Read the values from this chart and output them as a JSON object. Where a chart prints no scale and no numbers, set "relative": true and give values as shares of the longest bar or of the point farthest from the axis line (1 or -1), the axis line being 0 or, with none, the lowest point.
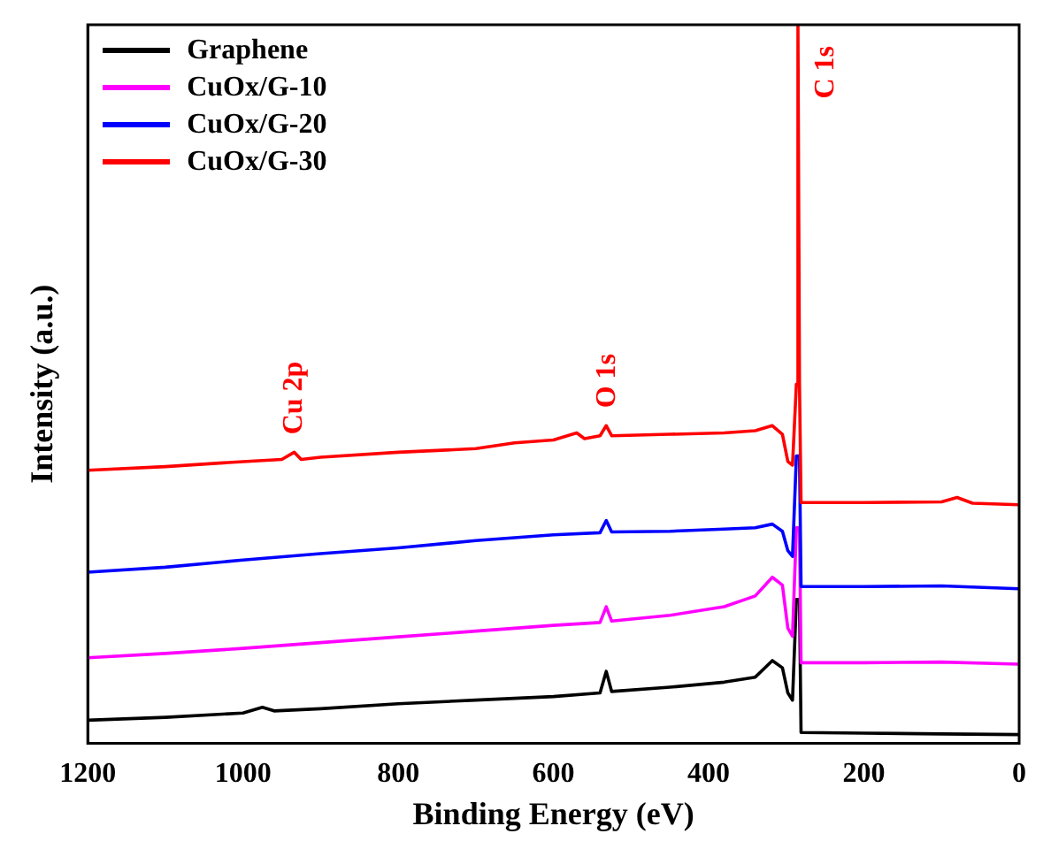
{
  "chart_data": {
    "type": "line",
    "xlabel": "Binding Energy (eV)",
    "ylabel": "Intensity (a.u.)",
    "relative": true,
    "xlim": [
      1200,
      0
    ],
    "xticks": [
      1200,
      1000,
      800,
      600,
      400,
      200,
      0
    ],
    "legend": "top left",
    "grid": false,
    "marker": "none",
    "line_style": "solid",
    "annotations": [
      {
        "text": "C 1s",
        "x": 285,
        "y": 1
      },
      {
        "text": "O 1s",
        "x": 530,
        "y": 0.442
      },
      {
        "text": "Cu 2p",
        "x": 934,
        "y": 0.405
      }
    ],
    "series": [
      {
        "name": "Graphene",
        "color": "#000000",
        "x": [
          1200,
          1100,
          1000,
          975,
          960,
          900,
          800,
          700,
          600,
          540,
          532,
          525,
          450,
          380,
          340,
          318,
          305,
          298,
          292,
          287,
          285,
          283,
          281,
          200,
          100,
          0
        ],
        "values": [
          0.032,
          0.036,
          0.042,
          0.05,
          0.045,
          0.048,
          0.055,
          0.06,
          0.065,
          0.07,
          0.1,
          0.072,
          0.078,
          0.085,
          0.092,
          0.115,
          0.105,
          0.07,
          0.06,
          0.2,
          null,
          0.2,
          0.015,
          0.014,
          0.013,
          0.012
        ]
      },
      {
        "name": "CuOx/G-10",
        "color": "#ff00ff",
        "x": [
          1200,
          1100,
          1000,
          900,
          800,
          700,
          600,
          540,
          532,
          525,
          450,
          380,
          340,
          318,
          305,
          298,
          292,
          287,
          285,
          283,
          281,
          200,
          100,
          0
        ],
        "values": [
          0.119,
          0.125,
          0.132,
          0.14,
          0.148,
          0.156,
          0.164,
          0.168,
          0.19,
          0.17,
          0.178,
          0.19,
          0.205,
          0.231,
          0.22,
          0.16,
          0.149,
          0.3,
          null,
          0.3,
          0.112,
          0.112,
          0.113,
          0.11
        ]
      },
      {
        "name": "CuOx/G-20",
        "color": "#0000ff",
        "x": [
          1200,
          1100,
          1000,
          900,
          800,
          700,
          600,
          540,
          532,
          525,
          450,
          380,
          340,
          318,
          305,
          298,
          292,
          287,
          285,
          283,
          281,
          200,
          100,
          0
        ],
        "values": [
          0.238,
          0.245,
          0.255,
          0.264,
          0.272,
          0.282,
          0.29,
          0.293,
          0.31,
          0.294,
          0.295,
          0.298,
          0.3,
          0.305,
          0.295,
          0.268,
          0.26,
          0.4,
          null,
          0.4,
          0.218,
          0.218,
          0.219,
          0.215
        ]
      },
      {
        "name": "CuOx/G-30",
        "color": "#ff0000",
        "x": [
          1200,
          1100,
          1000,
          950,
          934,
          925,
          900,
          800,
          700,
          650,
          600,
          570,
          560,
          540,
          532,
          525,
          450,
          380,
          340,
          318,
          305,
          298,
          292,
          287,
          285,
          283,
          281,
          200,
          100,
          80,
          60,
          0
        ],
        "values": [
          0.38,
          0.385,
          0.392,
          0.395,
          0.405,
          0.395,
          0.398,
          0.405,
          0.41,
          0.418,
          0.422,
          0.432,
          0.424,
          0.428,
          0.442,
          0.428,
          0.43,
          0.432,
          0.435,
          0.442,
          0.43,
          0.392,
          0.387,
          0.5,
          1,
          0.5,
          0.335,
          0.335,
          0.336,
          0.342,
          0.334,
          0.332
        ]
      }
    ]
  }
}
